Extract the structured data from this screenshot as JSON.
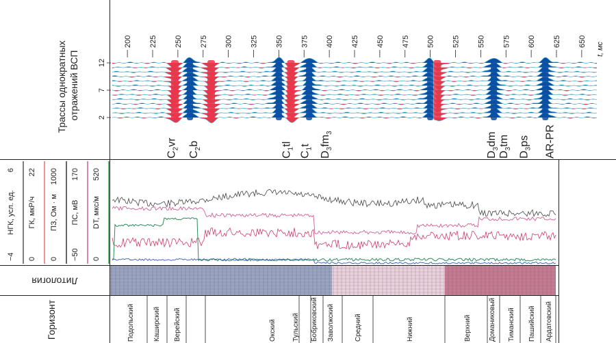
{
  "vsp": {
    "axis_title": "Трассы однократных отражений ВСП",
    "time_unit": "t, мс",
    "time_ticks": [
      200,
      225,
      250,
      275,
      300,
      325,
      350,
      375,
      400,
      425,
      450,
      475,
      500,
      525,
      550,
      575,
      600,
      625,
      650
    ],
    "trace_ticks": [
      "12",
      "7",
      "2"
    ],
    "horizons": [
      {
        "label": "C2vr",
        "base": "C",
        "sub": "2",
        "suffix": "vr",
        "time": 243
      },
      {
        "label": "C2b",
        "base": "C",
        "sub": "2",
        "suffix": "b",
        "time": 265
      },
      {
        "label": "C1tl",
        "base": "C",
        "sub": "1",
        "suffix": "tl",
        "time": 357
      },
      {
        "label": "C1t",
        "base": "C",
        "sub": "1",
        "suffix": "t",
        "time": 375
      },
      {
        "label": "D3fm3",
        "base": "D",
        "sub": "3",
        "suffix": "fm",
        "sub2": "3",
        "time": 395
      },
      {
        "label": "D3dm",
        "base": "D",
        "sub": "3",
        "suffix": "dm",
        "time": 560
      },
      {
        "label": "D3tm",
        "base": "D",
        "sub": "3",
        "suffix": "tm",
        "time": 572
      },
      {
        "label": "D3ps",
        "base": "D",
        "sub": "3",
        "suffix": "ps",
        "time": 592
      },
      {
        "label": "AR-PR",
        "base": "AR-PR",
        "sub": "",
        "suffix": "",
        "time": 618
      }
    ],
    "colors": {
      "positive": "#0a4fa3",
      "negative": "#e8364a",
      "trace": "#49b5d3"
    }
  },
  "logs": {
    "header": [
      {
        "name": "НГК, усл. ед.",
        "min": "−4",
        "max": "6",
        "color": "#555555"
      },
      {
        "name": "ГК, мкР/ч",
        "min": "0",
        "max": "22",
        "color": "#e07070"
      },
      {
        "name": "ПЗ, Ом · м",
        "min": "0",
        "max": "1000",
        "color": "#333333"
      },
      {
        "name": "ПС, мВ",
        "min": "−50",
        "max": "170",
        "color": "#d05d9a"
      },
      {
        "name": "DT, мкс/м",
        "min": "0",
        "max": "520",
        "color": "#2e9a4a"
      }
    ],
    "curve_colors": [
      "#555555",
      "#cc3a6a",
      "#d05d9a",
      "#2e8a5a",
      "#3a5bb0"
    ]
  },
  "lithology": {
    "label": "Литология"
  },
  "horizon_column": {
    "title": "Горизонт",
    "units": [
      "Подольский",
      "Каширский",
      "Верейский",
      "Окский",
      "Тульский",
      "Бобриковский",
      "Заволжский",
      "Средний",
      "Нижний",
      "Верхний",
      "Доманиковый",
      "Тиманский",
      "Пашийский",
      "Ардатовский"
    ]
  },
  "chart_data": {
    "type": "heatmap",
    "x_label": "t, мс",
    "x_range": [
      185,
      665
    ],
    "x_ticks": [
      200,
      225,
      250,
      275,
      300,
      325,
      350,
      375,
      400,
      425,
      450,
      475,
      500,
      525,
      550,
      575,
      600,
      625,
      650
    ],
    "y_label": "Трассы однократных отражений ВСП",
    "y_ticks": [
      2,
      7,
      12
    ],
    "traces": 13,
    "events": [
      {
        "t": 247,
        "polarity": "negative"
      },
      {
        "t": 262,
        "polarity": "positive"
      },
      {
        "t": 283,
        "polarity": "negative"
      },
      {
        "t": 350,
        "polarity": "positive"
      },
      {
        "t": 362,
        "polarity": "negative"
      },
      {
        "t": 380,
        "polarity": "positive"
      },
      {
        "t": 500,
        "polarity": "positive"
      },
      {
        "t": 507,
        "polarity": "negative"
      },
      {
        "t": 563,
        "polarity": "positive"
      },
      {
        "t": 614,
        "polarity": "positive"
      }
    ]
  }
}
